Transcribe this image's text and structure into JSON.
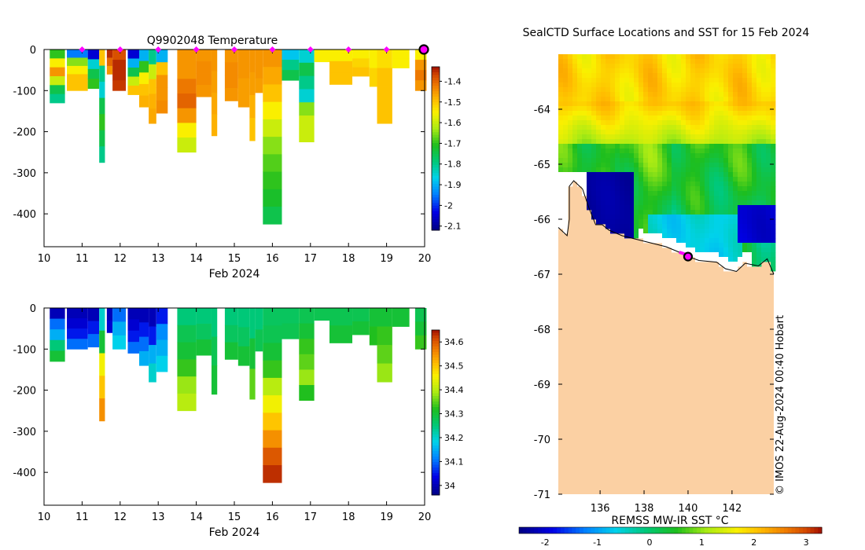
{
  "chart_data": [
    {
      "type": "heatmap",
      "title": "Q9902048  Temperature",
      "xlabel": "Feb 2024",
      "ylabel": "",
      "xlim": [
        10,
        20
      ],
      "ylim": [
        -480,
        0
      ],
      "xticks": [
        "10",
        "11",
        "12",
        "13",
        "14",
        "15",
        "16",
        "17",
        "18",
        "19",
        "20"
      ],
      "yticks": [
        "0",
        "-100",
        "-200",
        "-300",
        "-400"
      ],
      "colorbar": {
        "min": -2.12,
        "max": -1.33,
        "ticks": [
          "-1.4",
          "-1.5",
          "-1.6",
          "-1.7",
          "-1.8",
          "-1.9",
          "-2",
          "-2.1"
        ],
        "tick_values": [
          -1.4,
          -1.5,
          -1.6,
          -1.7,
          -1.8,
          -1.9,
          -2.0,
          -2.1
        ]
      },
      "markers_days": [
        11,
        12,
        13,
        14,
        15,
        16,
        17,
        18,
        19
      ],
      "latest_day": 20,
      "profiles": [
        {
          "x0": 10.15,
          "x1": 10.55,
          "depth": 130,
          "values": [
            -1.7,
            -1.55,
            -1.45,
            -1.6,
            -1.75,
            -1.8
          ]
        },
        {
          "x0": 10.6,
          "x1": 11.15,
          "depth": 100,
          "values": [
            -1.95,
            -1.65,
            -1.55,
            -1.5,
            -1.5
          ]
        },
        {
          "x0": 11.15,
          "x1": 11.45,
          "depth": 95,
          "values": [
            -2.05,
            -1.85,
            -1.75,
            -1.7
          ]
        },
        {
          "x0": 11.45,
          "x1": 11.6,
          "depth": 275,
          "values": [
            -1.5,
            -1.8,
            -1.85,
            -1.75,
            -1.7,
            -1.75,
            -1.8
          ]
        },
        {
          "x0": 11.65,
          "x1": 11.8,
          "depth": 60,
          "values": [
            -1.35,
            -1.4,
            -1.45
          ]
        },
        {
          "x0": 11.8,
          "x1": 12.15,
          "depth": 100,
          "values": [
            -1.38,
            -1.35,
            -1.35,
            -1.36
          ]
        },
        {
          "x0": 12.2,
          "x1": 12.5,
          "depth": 110,
          "values": [
            -2.05,
            -1.9,
            -1.75,
            -1.6,
            -1.5
          ]
        },
        {
          "x0": 12.5,
          "x1": 12.75,
          "depth": 140,
          "values": [
            -1.9,
            -1.7,
            -1.55,
            -1.5,
            -1.48
          ]
        },
        {
          "x0": 12.75,
          "x1": 12.95,
          "depth": 180,
          "values": [
            -1.8,
            -1.6,
            -1.5,
            -1.48,
            -1.47
          ]
        },
        {
          "x0": 12.95,
          "x1": 13.25,
          "depth": 155,
          "values": [
            -1.9,
            -1.5,
            -1.45,
            -1.45,
            -1.44
          ]
        },
        {
          "x0": 13.5,
          "x1": 14.0,
          "depth": 250,
          "values": [
            -1.45,
            -1.45,
            -1.42,
            -1.4,
            -1.45,
            -1.55,
            -1.6
          ]
        },
        {
          "x0": 14.0,
          "x1": 14.4,
          "depth": 115,
          "values": [
            -1.45,
            -1.44,
            -1.44,
            -1.45
          ]
        },
        {
          "x0": 14.4,
          "x1": 14.55,
          "depth": 210,
          "values": [
            -1.45,
            -1.46,
            -1.47,
            -1.48
          ]
        },
        {
          "x0": 14.75,
          "x1": 15.1,
          "depth": 125,
          "values": [
            -1.45,
            -1.44,
            -1.44,
            -1.45
          ]
        },
        {
          "x0": 15.1,
          "x1": 15.4,
          "depth": 140,
          "values": [
            -1.45,
            -1.45,
            -1.46,
            -1.46
          ]
        },
        {
          "x0": 15.4,
          "x1": 15.55,
          "depth": 222,
          "values": [
            -1.45,
            -1.46,
            -1.48,
            -1.5
          ]
        },
        {
          "x0": 15.55,
          "x1": 15.75,
          "depth": 105,
          "values": [
            -1.45,
            -1.45,
            -1.46
          ]
        },
        {
          "x0": 15.75,
          "x1": 16.25,
          "depth": 425,
          "values": [
            -1.45,
            -1.47,
            -1.5,
            -1.55,
            -1.6,
            -1.65,
            -1.68,
            -1.7,
            -1.72,
            -1.75
          ]
        },
        {
          "x0": 16.25,
          "x1": 16.7,
          "depth": 75,
          "values": [
            -1.88,
            -1.8,
            -1.75
          ]
        },
        {
          "x0": 16.7,
          "x1": 17.1,
          "depth": 225,
          "values": [
            -1.85,
            -1.75,
            -1.8,
            -1.85,
            -1.65,
            -1.6,
            -1.6
          ]
        },
        {
          "x0": 17.1,
          "x1": 17.5,
          "depth": 30,
          "values": [
            -1.55,
            -1.55
          ]
        },
        {
          "x0": 17.5,
          "x1": 18.1,
          "depth": 85,
          "values": [
            -1.55,
            -1.5,
            -1.5
          ]
        },
        {
          "x0": 18.1,
          "x1": 18.55,
          "depth": 65,
          "values": [
            -1.55,
            -1.52,
            -1.5
          ]
        },
        {
          "x0": 18.55,
          "x1": 18.75,
          "depth": 90,
          "values": [
            -1.55,
            -1.52
          ]
        },
        {
          "x0": 18.75,
          "x1": 19.15,
          "depth": 180,
          "values": [
            -1.53,
            -1.5,
            -1.5,
            -1.5
          ]
        },
        {
          "x0": 19.15,
          "x1": 19.6,
          "depth": 45,
          "values": [
            -1.55,
            -1.55
          ]
        },
        {
          "x0": 19.75,
          "x1": 20.05,
          "depth": 100,
          "values": [
            -1.55,
            -1.45,
            -1.42,
            -1.45
          ]
        }
      ]
    },
    {
      "type": "heatmap",
      "title": "",
      "xlabel": "Feb 2024",
      "ylabel": "",
      "xlim": [
        10,
        20
      ],
      "ylim": [
        -480,
        0
      ],
      "xticks": [
        "10",
        "11",
        "12",
        "13",
        "14",
        "15",
        "16",
        "17",
        "18",
        "19",
        "20"
      ],
      "yticks": [
        "0",
        "-100",
        "-200",
        "-300",
        "-400"
      ],
      "colorbar": {
        "min": 33.96,
        "max": 34.65,
        "ticks": [
          "34.6",
          "34.5",
          "34.4",
          "34.3",
          "34.2",
          "34.1",
          "34"
        ],
        "tick_values": [
          34.6,
          34.5,
          34.4,
          34.3,
          34.2,
          34.1,
          34.0
        ]
      },
      "profiles": [
        {
          "x0": 10.15,
          "x1": 10.55,
          "depth": 130,
          "values": [
            34.0,
            34.1,
            34.15,
            34.25,
            34.3
          ]
        },
        {
          "x0": 10.6,
          "x1": 11.15,
          "depth": 100,
          "values": [
            34.0,
            34.02,
            34.05,
            34.1
          ]
        },
        {
          "x0": 11.15,
          "x1": 11.45,
          "depth": 95,
          "values": [
            34.0,
            34.05,
            34.1
          ]
        },
        {
          "x0": 11.45,
          "x1": 11.6,
          "depth": 275,
          "values": [
            34.2,
            34.3,
            34.45,
            34.5,
            34.55
          ]
        },
        {
          "x0": 11.65,
          "x1": 11.8,
          "depth": 60,
          "values": [
            34.0,
            34.02
          ]
        },
        {
          "x0": 11.8,
          "x1": 12.15,
          "depth": 100,
          "values": [
            34.1,
            34.15,
            34.18
          ]
        },
        {
          "x0": 12.2,
          "x1": 12.5,
          "depth": 110,
          "values": [
            34.0,
            34.02,
            34.05,
            34.1
          ]
        },
        {
          "x0": 12.5,
          "x1": 12.75,
          "depth": 140,
          "values": [
            34.0,
            34.05,
            34.1,
            34.15
          ]
        },
        {
          "x0": 12.75,
          "x1": 12.95,
          "depth": 180,
          "values": [
            34.0,
            34.05,
            34.15,
            34.2
          ]
        },
        {
          "x0": 12.95,
          "x1": 13.25,
          "depth": 155,
          "values": [
            34.05,
            34.12,
            34.15,
            34.18
          ]
        },
        {
          "x0": 13.5,
          "x1": 14.0,
          "depth": 250,
          "values": [
            34.25,
            34.28,
            34.3,
            34.33,
            34.38,
            34.4
          ]
        },
        {
          "x0": 14.0,
          "x1": 14.4,
          "depth": 115,
          "values": [
            34.25,
            34.27,
            34.3
          ]
        },
        {
          "x0": 14.4,
          "x1": 14.55,
          "depth": 210,
          "values": [
            34.25,
            34.28,
            34.3
          ]
        },
        {
          "x0": 14.75,
          "x1": 15.1,
          "depth": 125,
          "values": [
            34.25,
            34.27,
            34.3
          ]
        },
        {
          "x0": 15.1,
          "x1": 15.4,
          "depth": 140,
          "values": [
            34.25,
            34.27,
            34.3
          ]
        },
        {
          "x0": 15.4,
          "x1": 15.55,
          "depth": 222,
          "values": [
            34.25,
            34.3,
            34.35
          ]
        },
        {
          "x0": 15.55,
          "x1": 15.75,
          "depth": 105,
          "values": [
            34.25,
            34.28
          ]
        },
        {
          "x0": 15.75,
          "x1": 16.25,
          "depth": 425,
          "values": [
            34.27,
            34.28,
            34.3,
            34.33,
            34.4,
            34.45,
            34.5,
            34.55,
            34.6,
            34.63
          ]
        },
        {
          "x0": 16.25,
          "x1": 16.7,
          "depth": 75,
          "values": [
            34.27,
            34.28
          ]
        },
        {
          "x0": 16.7,
          "x1": 17.1,
          "depth": 225,
          "values": [
            34.28,
            34.3,
            34.33,
            34.35,
            34.38,
            34.32
          ]
        },
        {
          "x0": 17.1,
          "x1": 17.5,
          "depth": 30,
          "values": [
            34.28
          ]
        },
        {
          "x0": 17.5,
          "x1": 18.1,
          "depth": 85,
          "values": [
            34.28,
            34.3
          ]
        },
        {
          "x0": 18.1,
          "x1": 18.55,
          "depth": 65,
          "values": [
            34.28,
            34.3
          ]
        },
        {
          "x0": 18.55,
          "x1": 18.75,
          "depth": 90,
          "values": [
            34.3,
            34.32
          ]
        },
        {
          "x0": 18.75,
          "x1": 19.15,
          "depth": 180,
          "values": [
            34.3,
            34.33,
            34.35,
            34.38
          ]
        },
        {
          "x0": 19.15,
          "x1": 19.6,
          "depth": 45,
          "values": [
            34.3
          ]
        },
        {
          "x0": 19.75,
          "x1": 20.05,
          "depth": 100,
          "values": [
            34.28,
            34.3,
            34.33
          ]
        }
      ]
    },
    {
      "type": "heatmap",
      "title": "SealCTD Surface Locations and SST for 15 Feb 2024",
      "xlabel": "",
      "ylabel": "",
      "xlim": [
        134.1,
        143.9
      ],
      "ylim": [
        -71,
        -63
      ],
      "xticks": [
        "136",
        "138",
        "140",
        "142"
      ],
      "xtick_values": [
        136,
        138,
        140,
        142
      ],
      "yticks": [
        "-64",
        "-65",
        "-66",
        "-67",
        "-68",
        "-69",
        "-70",
        "-71"
      ],
      "ytick_values": [
        -64,
        -65,
        -66,
        -67,
        -68,
        -69,
        -70,
        -71
      ],
      "colorbar": {
        "label": "REMSS MW-IR SST °C",
        "min": -2.5,
        "max": 3.3,
        "ticks": [
          "-2",
          "-1",
          "0",
          "1",
          "2",
          "3"
        ],
        "tick_values": [
          -2,
          -1,
          0,
          1,
          2,
          3
        ]
      },
      "coast": [
        [
          134.1,
          -66.15
        ],
        [
          134.5,
          -66.3
        ],
        [
          134.6,
          -66.0
        ],
        [
          134.6,
          -65.4
        ],
        [
          134.8,
          -65.3
        ],
        [
          135.2,
          -65.45
        ],
        [
          135.5,
          -65.8
        ],
        [
          135.8,
          -66.1
        ],
        [
          136.1,
          -66.1
        ],
        [
          136.4,
          -66.2
        ],
        [
          137.0,
          -66.3
        ],
        [
          138.0,
          -66.4
        ],
        [
          139.0,
          -66.5
        ],
        [
          139.6,
          -66.6
        ],
        [
          140.0,
          -66.68
        ],
        [
          140.5,
          -66.75
        ],
        [
          141.3,
          -66.78
        ],
        [
          141.7,
          -66.9
        ],
        [
          142.2,
          -66.95
        ],
        [
          142.6,
          -66.8
        ],
        [
          143.2,
          -66.85
        ],
        [
          143.6,
          -66.72
        ],
        [
          143.9,
          -67.0
        ]
      ],
      "seal_track": [
        [
          139.6,
          -66.6
        ],
        [
          139.75,
          -66.62
        ],
        [
          139.9,
          -66.64
        ],
        [
          140.0,
          -66.66
        ]
      ],
      "seal_latest": [
        140.0,
        -66.68
      ]
    }
  ],
  "watermark": "© IMOS 22-Aug-2024 00:40 Hobart"
}
